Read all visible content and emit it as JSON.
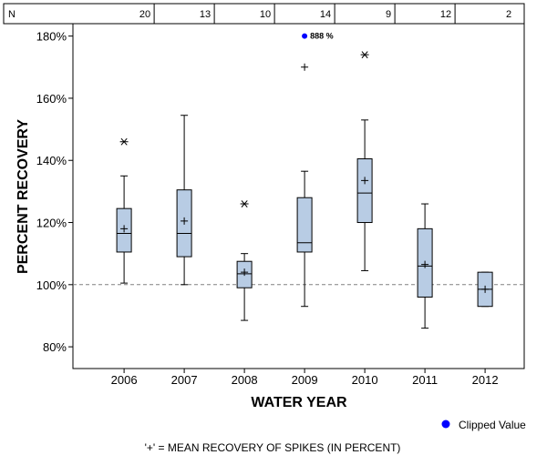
{
  "chart_data": {
    "type": "box",
    "xlabel": "WATER YEAR",
    "ylabel": "PERCENT RECOVERY",
    "ylim": [
      73,
      184
    ],
    "yticks": [
      80,
      100,
      120,
      140,
      160,
      180
    ],
    "ytick_labels": [
      "80%",
      "100%",
      "120%",
      "140%",
      "160%",
      "180%"
    ],
    "reference_line": 100,
    "n_header_label": "N",
    "categories": [
      "2006",
      "2007",
      "2008",
      "2009",
      "2010",
      "2011",
      "2012"
    ],
    "n": [
      "20",
      "13",
      "10",
      "14",
      "9",
      "12",
      "2"
    ],
    "boxes": [
      {
        "year": "2006",
        "whisker_low": 100.5,
        "q1": 110.5,
        "median": 116.5,
        "q3": 124.5,
        "whisker_high": 135,
        "mean": 118,
        "outliers": [
          146
        ]
      },
      {
        "year": "2007",
        "whisker_low": 100,
        "q1": 109,
        "median": 116.5,
        "q3": 130.5,
        "whisker_high": 154.5,
        "mean": 120.5,
        "outliers": []
      },
      {
        "year": "2008",
        "whisker_low": 88.5,
        "q1": 99,
        "median": 103.5,
        "q3": 107.5,
        "whisker_high": 110,
        "mean": 104,
        "outliers": [
          126
        ]
      },
      {
        "year": "2009",
        "whisker_low": 93,
        "q1": 110.5,
        "median": 113.5,
        "q3": 128,
        "whisker_high": 136.5,
        "mean": null,
        "outliers": [
          170
        ],
        "clipped": [
          {
            "value": 180,
            "label": "888 %"
          }
        ]
      },
      {
        "year": "2010",
        "whisker_low": 104.5,
        "q1": 120,
        "median": 129.5,
        "q3": 140.5,
        "whisker_high": 153,
        "mean": 133.5,
        "outliers": [
          174
        ]
      },
      {
        "year": "2011",
        "whisker_low": 86,
        "q1": 96,
        "median": 106,
        "q3": 118,
        "whisker_high": 126,
        "mean": 106.5,
        "outliers": []
      },
      {
        "year": "2012",
        "whisker_low": 93,
        "q1": 93,
        "median": 98.5,
        "q3": 104,
        "whisker_high": 104,
        "mean": 98.5,
        "outliers": []
      }
    ],
    "legend": {
      "clipped_label": "Clipped Value",
      "clipped_color": "#0000ff"
    },
    "footnote": "'+' = MEAN RECOVERY OF SPIKES (IN PERCENT)",
    "box_color": "#b8cce4",
    "reference_color": "#808080"
  }
}
